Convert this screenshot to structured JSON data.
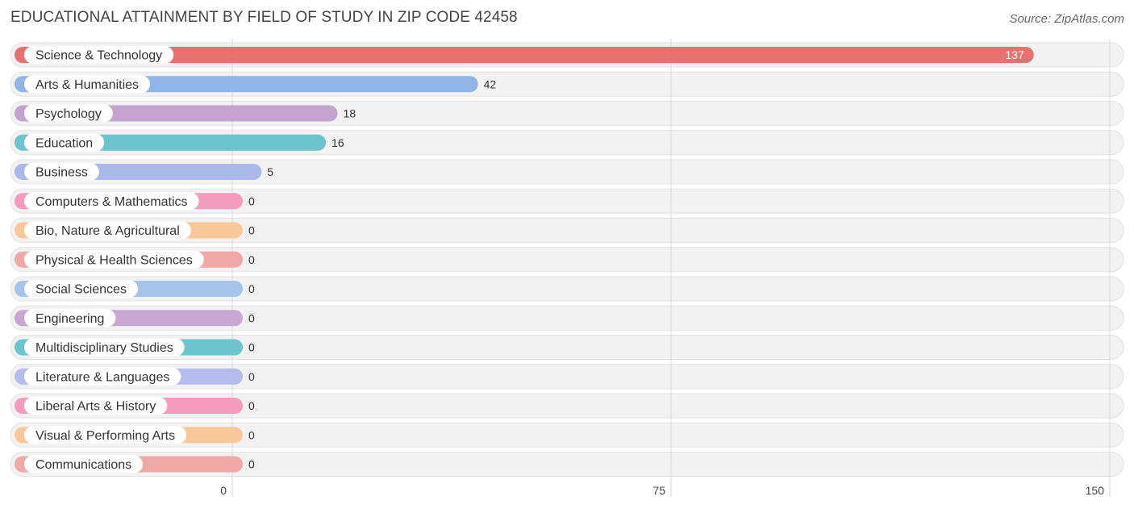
{
  "title": "EDUCATIONAL ATTAINMENT BY FIELD OF STUDY IN ZIP CODE 42458",
  "source": "Source: ZipAtlas.com",
  "chart_data": {
    "type": "bar",
    "orientation": "horizontal",
    "title": "EDUCATIONAL ATTAINMENT BY FIELD OF STUDY IN ZIP CODE 42458",
    "xlabel": "",
    "ylabel": "",
    "xlim": [
      0,
      150
    ],
    "ticks": [
      0,
      75,
      150
    ],
    "tick_labels": [
      "0",
      "75",
      "150"
    ],
    "grid": true,
    "categories": [
      "Science & Technology",
      "Arts & Humanities",
      "Psychology",
      "Education",
      "Business",
      "Computers & Mathematics",
      "Bio, Nature & Agricultural",
      "Physical & Health Sciences",
      "Social Sciences",
      "Engineering",
      "Multidisciplinary Studies",
      "Literature & Languages",
      "Liberal Arts & History",
      "Visual & Performing Arts",
      "Communications"
    ],
    "values": [
      137,
      42,
      18,
      16,
      5,
      0,
      0,
      0,
      0,
      0,
      0,
      0,
      0,
      0,
      0
    ],
    "value_labels": [
      "137",
      "42",
      "18",
      "16",
      "5",
      "0",
      "0",
      "0",
      "0",
      "0",
      "0",
      "0",
      "0",
      "0",
      "0"
    ],
    "colors": [
      "#e8716f",
      "#8fb6e6",
      "#c4a3cf",
      "#6cc4cc",
      "#abb8ea",
      "#f59bbd",
      "#f8c89a",
      "#efa8a5",
      "#a6c3ea",
      "#c8a8d2",
      "#6cc4cc",
      "#b4bdee",
      "#f59bbd",
      "#f8c89a",
      "#efa8a5"
    ]
  }
}
